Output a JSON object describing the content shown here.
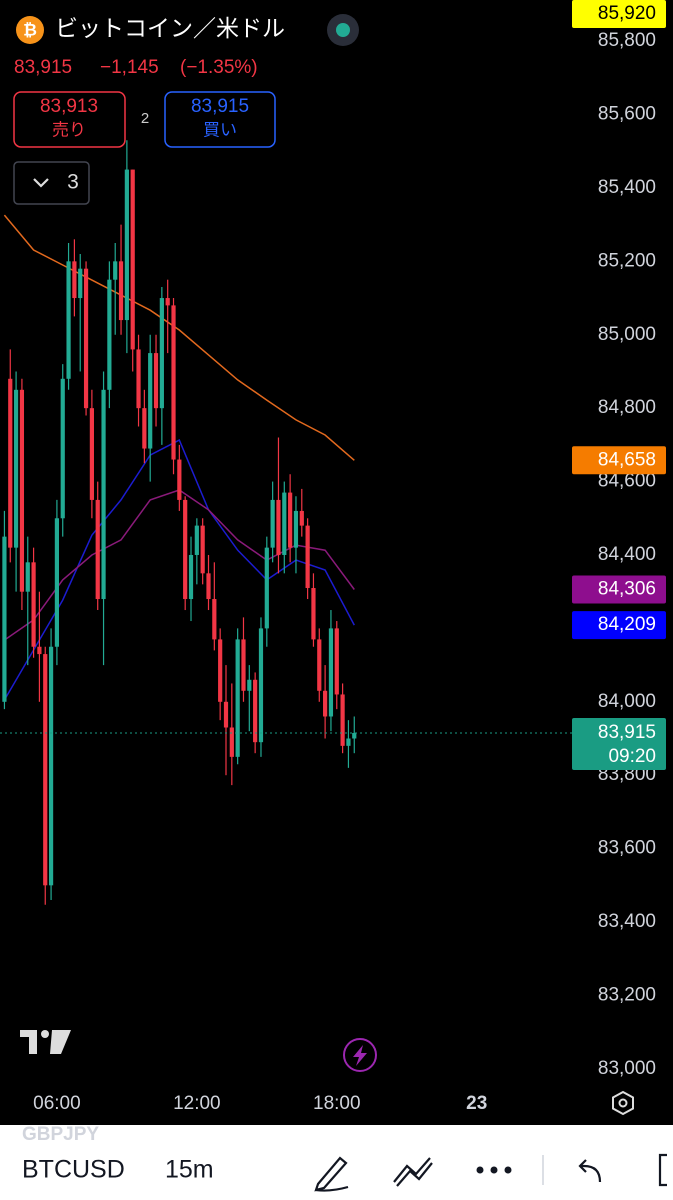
{
  "header": {
    "title": "ビットコイン／米ドル",
    "price": "83,915",
    "change": "−1,145",
    "change_pct": "(−1.35%)",
    "sell_price": "83,913",
    "sell_label": "売り",
    "spread": "2",
    "buy_price": "83,915",
    "buy_label": "買い",
    "indicators_count": "3"
  },
  "toolbar": {
    "ghost_symbol": "GBPJPY",
    "symbol": "BTCUSD",
    "interval": "15m"
  },
  "chart_data": {
    "type": "candlestick",
    "x": [
      3.75,
      4,
      4.25,
      4.5,
      4.75,
      5,
      5.25,
      5.5,
      5.75,
      6,
      6.25,
      6.5,
      6.75,
      7,
      7.25,
      7.5,
      7.75,
      8,
      8.25,
      8.5,
      8.75,
      9,
      9.25,
      9.5,
      9.75,
      10,
      10.25,
      10.5,
      10.75,
      11,
      11.25,
      11.5,
      11.75,
      12,
      12.25,
      12.5,
      12.75,
      13,
      13.25,
      13.5,
      13.75,
      14,
      14.25,
      14.5,
      14.75,
      15,
      15.25,
      15.5,
      15.75,
      16,
      16.25,
      16.5,
      16.75,
      17,
      17.25,
      17.5,
      17.75,
      18,
      18.25,
      18.5,
      18.75
    ],
    "open": [
      84000,
      84880,
      84420,
      84850,
      84300,
      84380,
      84150,
      84130,
      83500,
      84150,
      84500,
      84880,
      85200,
      85100,
      85180,
      84800,
      84550,
      84280,
      84850,
      85150,
      85200,
      85040,
      85450,
      84960,
      84800,
      84690,
      84950,
      84800,
      85100,
      85080,
      84660,
      84550,
      84280,
      84400,
      84480,
      84350,
      84280,
      84170,
      84000,
      83930,
      83850,
      84170,
      84030,
      84060,
      83890,
      84200,
      84420,
      84550,
      84400,
      84570,
      84420,
      84520,
      84480,
      84310,
      84170,
      84030,
      83960,
      84200,
      84020,
      83880,
      83900
    ],
    "high": [
      84520,
      84960,
      84900,
      84880,
      84450,
      84420,
      84300,
      84150,
      84200,
      84550,
      84920,
      85250,
      85260,
      85220,
      85200,
      84850,
      84600,
      84900,
      85200,
      85250,
      85300,
      85530,
      85450,
      85000,
      84850,
      85000,
      85000,
      85130,
      85150,
      85100,
      84700,
      84560,
      84450,
      84500,
      84500,
      84400,
      84380,
      84200,
      84100,
      84050,
      84200,
      84230,
      84100,
      84080,
      84230,
      84450,
      84600,
      84720,
      84600,
      84620,
      84560,
      84580,
      84500,
      84350,
      84200,
      84100,
      84250,
      84220,
      84050,
      83950,
      83960
    ],
    "low": [
      83980,
      84380,
      84300,
      84250,
      84100,
      84120,
      84000,
      83447,
      83460,
      84100,
      84450,
      84850,
      85050,
      84900,
      84780,
      84500,
      84250,
      84100,
      84800,
      85000,
      85000,
      84950,
      84900,
      84750,
      84650,
      84600,
      84750,
      84700,
      84950,
      84620,
      84520,
      84250,
      84220,
      84320,
      84320,
      84250,
      84140,
      83950,
      83800,
      83773,
      83830,
      84000,
      83920,
      83860,
      83850,
      84150,
      84380,
      84350,
      84350,
      84380,
      84350,
      84450,
      84280,
      84150,
      84000,
      83900,
      83920,
      83980,
      83860,
      83820,
      83860
    ],
    "close": [
      84450,
      84420,
      84850,
      84300,
      84380,
      84150,
      84130,
      83500,
      84150,
      84500,
      84880,
      85200,
      85100,
      85180,
      84800,
      84550,
      84280,
      84850,
      85150,
      85200,
      85040,
      85450,
      84960,
      84800,
      84690,
      84950,
      84800,
      85100,
      85080,
      84660,
      84550,
      84280,
      84400,
      84480,
      84350,
      84280,
      84170,
      84000,
      83930,
      83850,
      84170,
      84030,
      84060,
      83890,
      84200,
      84420,
      84550,
      84400,
      84570,
      84420,
      84520,
      84480,
      84310,
      84170,
      84030,
      83960,
      84200,
      84020,
      83880,
      83900,
      83915
    ],
    "up_color": "#22ab94",
    "down_color": "#f23645",
    "series": [
      {
        "color": "#e2691e",
        "x": [
          3.75,
          5,
          6.25,
          7.5,
          8.75,
          10,
          11.25,
          12.5,
          13.75,
          15,
          16.25,
          17.5,
          18.75
        ],
        "values": [
          85326,
          85231,
          85190,
          85149,
          85108,
          85067,
          85013,
          84945,
          84877,
          84822,
          84768,
          84727,
          84658
        ]
      },
      {
        "color": "#1c1ccf",
        "x": [
          3.75,
          5,
          6.25,
          7.5,
          8.75,
          10,
          11.25,
          12.5,
          13.75,
          15,
          16.25,
          17.5,
          18.75
        ],
        "values": [
          84005,
          84141,
          84277,
          84454,
          84550,
          84672,
          84713,
          84523,
          84413,
          84332,
          84386,
          84359,
          84209
        ]
      },
      {
        "color": "#8a1a7a",
        "x": [
          3.75,
          5,
          6.25,
          7.5,
          8.75,
          10,
          11.25,
          12.5,
          13.75,
          15,
          16.25,
          17.5,
          18.75
        ],
        "values": [
          84168,
          84223,
          84332,
          84400,
          84441,
          84550,
          84577,
          84523,
          84441,
          84386,
          84427,
          84413,
          84306
        ]
      }
    ],
    "xlim": [
      3.56,
      28
    ],
    "xticks": [
      {
        "value": 6,
        "label": "06:00"
      },
      {
        "value": 12,
        "label": "12:00"
      },
      {
        "value": 18,
        "label": "18:00"
      },
      {
        "value": 24,
        "label": "23"
      }
    ],
    "ylim": [
      82956,
      85912
    ],
    "yticks": [
      {
        "value": 83000,
        "label": "83,000"
      },
      {
        "value": 83200,
        "label": "83,200"
      },
      {
        "value": 83400,
        "label": "83,400"
      },
      {
        "value": 83600,
        "label": "83,600"
      },
      {
        "value": 83800,
        "label": "83,800"
      },
      {
        "value": 84000,
        "label": "84,000"
      },
      {
        "value": 84200,
        "label": "84,200"
      },
      {
        "value": 84400,
        "label": "84,400"
      },
      {
        "value": 84600,
        "label": "84,600"
      },
      {
        "value": 84800,
        "label": "84,800"
      },
      {
        "value": 85000,
        "label": "85,000"
      },
      {
        "value": 85200,
        "label": "85,200"
      },
      {
        "value": 85400,
        "label": "85,400"
      },
      {
        "value": 85600,
        "label": "85,600"
      },
      {
        "value": 85800,
        "label": "85,800"
      }
    ],
    "grid": false,
    "price_tags": [
      {
        "value": 85920,
        "label": "85,920",
        "color": "#ffff00",
        "text_color": "#000000"
      },
      {
        "value": 84658,
        "label": "84,658",
        "color": "#f57c00",
        "text_color": "#ffffff"
      },
      {
        "value": 84306,
        "label": "84,306",
        "color": "#8e0e8e",
        "text_color": "#ffffff"
      },
      {
        "value": 84209,
        "label": "84,209",
        "color": "#0000ff",
        "text_color": "#ffffff"
      },
      {
        "value": 83915,
        "label": "83,915",
        "countdown": "09:20",
        "color": "#1a9c83",
        "text_color": "#ffffff",
        "line": true
      }
    ]
  }
}
